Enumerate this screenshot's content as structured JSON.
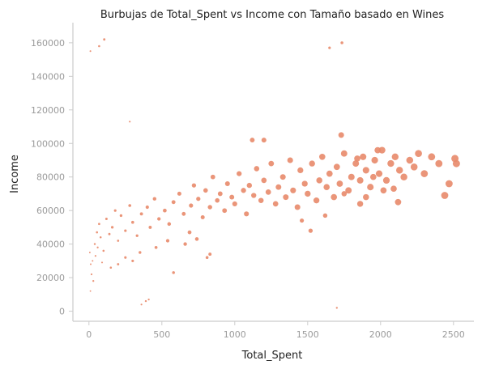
{
  "chart_data": {
    "type": "scatter",
    "title": "Burbujas de Total_Spent vs Income con Tamaño basado en Wines",
    "xlabel": "Total_Spent",
    "ylabel": "Income",
    "xlim": [
      -110,
      2640
    ],
    "ylim": [
      -6000,
      172000
    ],
    "x_ticks": [
      0,
      500,
      1000,
      1500,
      2000,
      2500
    ],
    "y_ticks": [
      0,
      20000,
      40000,
      60000,
      80000,
      100000,
      120000,
      140000,
      160000
    ],
    "grid": false,
    "color": "#e8896a",
    "size_variable": "Wines",
    "points": [
      [
        6,
        35000,
        10
      ],
      [
        12,
        28000,
        15
      ],
      [
        18,
        22000,
        20
      ],
      [
        25,
        30000,
        12
      ],
      [
        30,
        18000,
        25
      ],
      [
        10,
        12000,
        8
      ],
      [
        40,
        40000,
        30
      ],
      [
        45,
        33000,
        20
      ],
      [
        55,
        47000,
        40
      ],
      [
        60,
        38000,
        25
      ],
      [
        70,
        52000,
        50
      ],
      [
        80,
        44000,
        35
      ],
      [
        90,
        29000,
        15
      ],
      [
        100,
        36000,
        40
      ],
      [
        120,
        55000,
        70
      ],
      [
        140,
        46000,
        60
      ],
      [
        160,
        50000,
        90
      ],
      [
        180,
        60000,
        80
      ],
      [
        200,
        42000,
        45
      ],
      [
        220,
        57000,
        100
      ],
      [
        250,
        48000,
        80
      ],
      [
        280,
        63000,
        120
      ],
      [
        300,
        53000,
        120
      ],
      [
        330,
        45000,
        90
      ],
      [
        360,
        58000,
        150
      ],
      [
        400,
        62000,
        180
      ],
      [
        420,
        50000,
        150
      ],
      [
        450,
        67000,
        220
      ],
      [
        480,
        55000,
        200
      ],
      [
        520,
        60000,
        250
      ],
      [
        550,
        52000,
        230
      ],
      [
        580,
        65000,
        280
      ],
      [
        620,
        70000,
        300
      ],
      [
        650,
        58000,
        270
      ],
      [
        700,
        63000,
        320
      ],
      [
        720,
        75000,
        350
      ],
      [
        750,
        67000,
        340
      ],
      [
        780,
        56000,
        300
      ],
      [
        800,
        72000,
        400
      ],
      [
        830,
        62000,
        380
      ],
      [
        850,
        80000,
        420
      ],
      [
        880,
        66000,
        400
      ],
      [
        900,
        70000,
        450
      ],
      [
        930,
        60000,
        430
      ],
      [
        950,
        76000,
        480
      ],
      [
        980,
        68000,
        460
      ],
      [
        1000,
        64000,
        500
      ],
      [
        1030,
        82000,
        520
      ],
      [
        1060,
        72000,
        540
      ],
      [
        1080,
        58000,
        500
      ],
      [
        1100,
        75000,
        560
      ],
      [
        1130,
        69000,
        550
      ],
      [
        1150,
        85000,
        600
      ],
      [
        1180,
        66000,
        580
      ],
      [
        1200,
        78000,
        620
      ],
      [
        1230,
        71000,
        640
      ],
      [
        1250,
        88000,
        650
      ],
      [
        1280,
        64000,
        630
      ],
      [
        1300,
        74000,
        680
      ],
      [
        1330,
        80000,
        700
      ],
      [
        1350,
        68000,
        690
      ],
      [
        1380,
        90000,
        720
      ],
      [
        1400,
        72000,
        730
      ],
      [
        1430,
        62000,
        700
      ],
      [
        1450,
        84000,
        760
      ],
      [
        1480,
        76000,
        770
      ],
      [
        1500,
        70000,
        780
      ],
      [
        1530,
        88000,
        800
      ],
      [
        1560,
        66000,
        790
      ],
      [
        1580,
        78000,
        820
      ],
      [
        1600,
        92000,
        850
      ],
      [
        1630,
        74000,
        840
      ],
      [
        1650,
        82000,
        870
      ],
      [
        1680,
        68000,
        860
      ],
      [
        1700,
        86000,
        890
      ],
      [
        1720,
        76000,
        900
      ],
      [
        1750,
        94000,
        920
      ],
      [
        1780,
        72000,
        910
      ],
      [
        1800,
        80000,
        940
      ],
      [
        1830,
        88000,
        950
      ],
      [
        1860,
        78000,
        960
      ],
      [
        1880,
        92000,
        980
      ],
      [
        1900,
        84000,
        990
      ],
      [
        1930,
        74000,
        970
      ],
      [
        1960,
        90000,
        1010
      ],
      [
        1990,
        82000,
        1020
      ],
      [
        2010,
        96000,
        1040
      ],
      [
        2040,
        78000,
        1030
      ],
      [
        2070,
        88000,
        1060
      ],
      [
        2100,
        92000,
        1080
      ],
      [
        2130,
        84000,
        1090
      ],
      [
        2160,
        80000,
        1100
      ],
      [
        2200,
        90000,
        1120
      ],
      [
        2230,
        86000,
        1130
      ],
      [
        2260,
        94000,
        1150
      ],
      [
        2300,
        82000,
        1160
      ],
      [
        2350,
        92000,
        1180
      ],
      [
        2400,
        88000,
        1200
      ],
      [
        2440,
        69000,
        1190
      ],
      [
        2470,
        76000,
        1210
      ],
      [
        2510,
        91000,
        1250
      ],
      [
        2520,
        88000,
        1240
      ],
      [
        1730,
        105000,
        700
      ],
      [
        1700,
        2000,
        30
      ],
      [
        1650,
        157000,
        80
      ],
      [
        1735,
        160000,
        110
      ],
      [
        105,
        162000,
        60
      ],
      [
        70,
        158000,
        40
      ],
      [
        10,
        155000,
        15
      ],
      [
        280,
        113000,
        20
      ],
      [
        390,
        6000,
        30
      ],
      [
        360,
        4000,
        20
      ],
      [
        410,
        7000,
        25
      ],
      [
        830,
        34000,
        150
      ],
      [
        810,
        32000,
        120
      ],
      [
        580,
        23000,
        110
      ],
      [
        1200,
        102000,
        480
      ],
      [
        1120,
        102000,
        450
      ],
      [
        1750,
        70000,
        600
      ],
      [
        1520,
        48000,
        350
      ],
      [
        1620,
        57000,
        380
      ],
      [
        1460,
        54000,
        320
      ],
      [
        1980,
        96000,
        900
      ],
      [
        1840,
        91000,
        850
      ],
      [
        2120,
        65000,
        900
      ],
      [
        2090,
        73000,
        880
      ],
      [
        2020,
        72000,
        860
      ],
      [
        1900,
        68000,
        830
      ],
      [
        1860,
        64000,
        800
      ],
      [
        1950,
        80000,
        870
      ],
      [
        540,
        42000,
        190
      ],
      [
        660,
        40000,
        210
      ],
      [
        740,
        43000,
        230
      ],
      [
        690,
        47000,
        260
      ],
      [
        460,
        38000,
        130
      ],
      [
        350,
        35000,
        100
      ],
      [
        300,
        30000,
        80
      ],
      [
        250,
        32000,
        75
      ],
      [
        200,
        28000,
        55
      ],
      [
        150,
        26000,
        40
      ]
    ]
  }
}
